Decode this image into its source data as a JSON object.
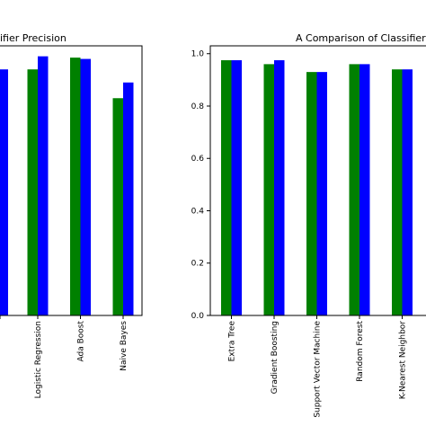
{
  "chart_data": [
    {
      "type": "bar",
      "title": "Classifier Precision",
      "title_visible_fragment": "ifier Precision",
      "categories": [
        "Logistic Regression",
        "Ada Boost",
        "Naive Bayes"
      ],
      "series": [
        {
          "values": [
            0.94,
            0.985,
            0.83
          ],
          "color": "#008000"
        },
        {
          "values": [
            0.99,
            0.98,
            0.89
          ],
          "color": "#0000ff"
        }
      ],
      "partial_first_category": {
        "series_values": [
          null,
          0.94
        ]
      },
      "ylim": [
        0,
        1.03
      ],
      "grid": false
    },
    {
      "type": "bar",
      "title": "A Comparison of Classifier",
      "categories": [
        "Extra Tree",
        "Gradient Boosting",
        "Support Vector Machine",
        "Random Forest",
        "K-Nearest Neighbor"
      ],
      "series": [
        {
          "values": [
            0.975,
            0.96,
            0.93,
            0.96,
            0.94
          ],
          "color": "#008000"
        },
        {
          "values": [
            0.975,
            0.975,
            0.93,
            0.96,
            0.94
          ],
          "color": "#0000ff"
        }
      ],
      "yticks": [
        "0.0",
        "0.2",
        "0.4",
        "0.6",
        "0.8",
        "1.0"
      ],
      "ylim": [
        0,
        1.03
      ],
      "grid": false
    }
  ]
}
